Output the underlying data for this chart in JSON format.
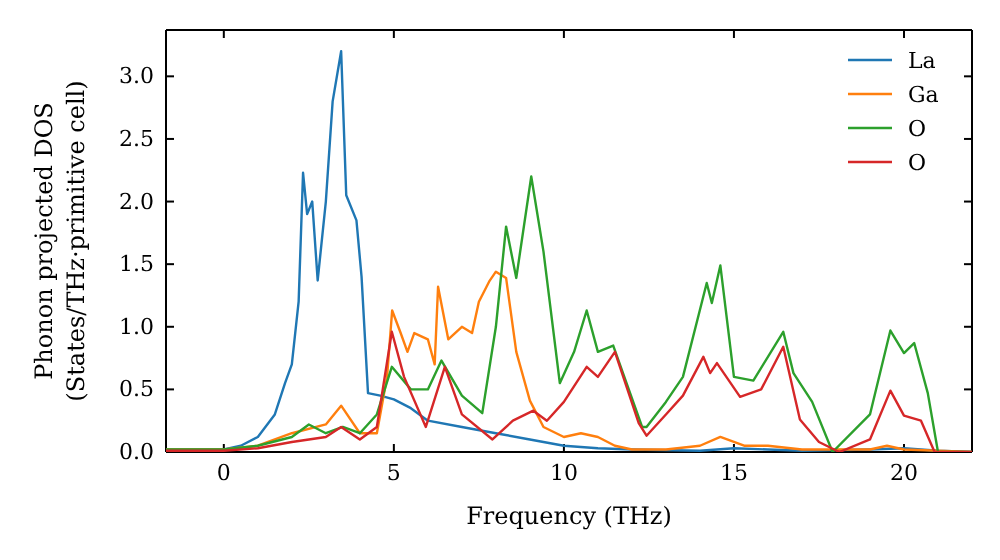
{
  "chart_data": {
    "type": "line",
    "xlabel": "Frequency (THz)",
    "ylabel": "Phonon projected DOS\n(States/THz·primitive cell)",
    "xlim": [
      -1.7,
      22
    ],
    "ylim": [
      0,
      3.37
    ],
    "xticks": [
      0,
      5,
      10,
      15,
      20
    ],
    "yticks": [
      {
        "value": 0,
        "label": "0.0"
      },
      0.5,
      {
        "value": 1,
        "label": "1.0"
      },
      1.5,
      {
        "value": 2,
        "label": "2.0"
      },
      2.5,
      {
        "value": 3,
        "label": "3.0"
      }
    ],
    "grid": false,
    "legend": "top right",
    "marker": "none",
    "line_style": "solid",
    "series": [
      {
        "name": "La",
        "color": "#1f77b4",
        "x": [
          -1.7,
          0,
          0.5,
          1,
          1.5,
          1.8,
          2.0,
          2.2,
          2.33,
          2.45,
          2.6,
          2.76,
          3.0,
          3.2,
          3.45,
          3.6,
          3.9,
          4.05,
          4.24,
          4.6,
          5,
          5.5,
          6,
          7,
          8,
          9,
          10,
          11,
          12,
          14,
          15,
          16,
          17,
          19,
          20,
          21,
          22
        ],
        "values": [
          0.02,
          0.02,
          0.05,
          0.12,
          0.3,
          0.55,
          0.7,
          1.2,
          2.23,
          1.9,
          2.0,
          1.37,
          2.0,
          2.8,
          3.2,
          2.05,
          1.85,
          1.4,
          0.47,
          0.45,
          0.42,
          0.35,
          0.25,
          0.2,
          0.15,
          0.1,
          0.05,
          0.03,
          0.02,
          0.01,
          0.03,
          0.02,
          0.01,
          0.02,
          0.03,
          0.01,
          0
        ]
      },
      {
        "name": "Ga",
        "color": "#ff7f0e",
        "x": [
          -1.7,
          0,
          1,
          2,
          3,
          3.45,
          4,
          4.5,
          4.8,
          4.95,
          5.2,
          5.4,
          5.6,
          6.0,
          6.2,
          6.3,
          6.6,
          7.0,
          7.3,
          7.5,
          7.8,
          8.0,
          8.3,
          8.6,
          9.0,
          9.4,
          10,
          10.5,
          11,
          11.5,
          12,
          13,
          14,
          14.6,
          15.3,
          16,
          17,
          19,
          19.5,
          20,
          22
        ],
        "values": [
          0.02,
          0.02,
          0.05,
          0.15,
          0.22,
          0.37,
          0.15,
          0.15,
          0.6,
          1.13,
          0.95,
          0.8,
          0.95,
          0.9,
          0.7,
          1.32,
          0.9,
          1.0,
          0.95,
          1.2,
          1.36,
          1.44,
          1.39,
          0.8,
          0.41,
          0.2,
          0.12,
          0.15,
          0.12,
          0.05,
          0.02,
          0.02,
          0.05,
          0.12,
          0.05,
          0.05,
          0.02,
          0.02,
          0.05,
          0.02,
          0
        ]
      },
      {
        "name": "O",
        "color": "#2ca02c",
        "x": [
          -1.7,
          0,
          1,
          2,
          2.5,
          3,
          3.5,
          4,
          4.5,
          4.94,
          5.5,
          6,
          6.4,
          7,
          7.6,
          8.0,
          8.3,
          8.6,
          9.04,
          9.4,
          9.88,
          10.3,
          10.67,
          11.0,
          11.45,
          12.3,
          12.43,
          13,
          13.5,
          14.2,
          14.35,
          14.6,
          15.0,
          15.57,
          16.45,
          16.75,
          17.3,
          17.9,
          19,
          19.6,
          20,
          20.3,
          20.7,
          21,
          22
        ],
        "values": [
          0.02,
          0.02,
          0.05,
          0.12,
          0.22,
          0.15,
          0.2,
          0.15,
          0.3,
          0.68,
          0.5,
          0.5,
          0.73,
          0.45,
          0.31,
          1.0,
          1.8,
          1.39,
          2.2,
          1.6,
          0.55,
          0.8,
          1.13,
          0.8,
          0.85,
          0.2,
          0.2,
          0.4,
          0.6,
          1.35,
          1.19,
          1.49,
          0.6,
          0.57,
          0.96,
          0.63,
          0.4,
          0.0,
          0.3,
          0.97,
          0.79,
          0.87,
          0.47,
          0,
          0
        ]
      },
      {
        "name": "O",
        "color": "#d62728",
        "x": [
          -1.7,
          0,
          1,
          2,
          3,
          3.45,
          4,
          4.5,
          4.94,
          5.3,
          5.94,
          6.5,
          7,
          7.9,
          8.5,
          9.1,
          9.5,
          10,
          10.67,
          11.0,
          11.5,
          12.2,
          12.43,
          13,
          13.5,
          14.1,
          14.3,
          14.5,
          15.18,
          15.8,
          16.45,
          16.94,
          17.5,
          18.1,
          19,
          19.6,
          20,
          20.5,
          20.9,
          22
        ],
        "values": [
          0.01,
          0.01,
          0.03,
          0.08,
          0.12,
          0.2,
          0.1,
          0.2,
          0.96,
          0.6,
          0.2,
          0.68,
          0.3,
          0.1,
          0.25,
          0.33,
          0.25,
          0.4,
          0.68,
          0.6,
          0.8,
          0.23,
          0.13,
          0.3,
          0.45,
          0.76,
          0.63,
          0.71,
          0.44,
          0.5,
          0.84,
          0.26,
          0.08,
          0,
          0.1,
          0.49,
          0.29,
          0.25,
          0,
          0
        ]
      }
    ]
  }
}
